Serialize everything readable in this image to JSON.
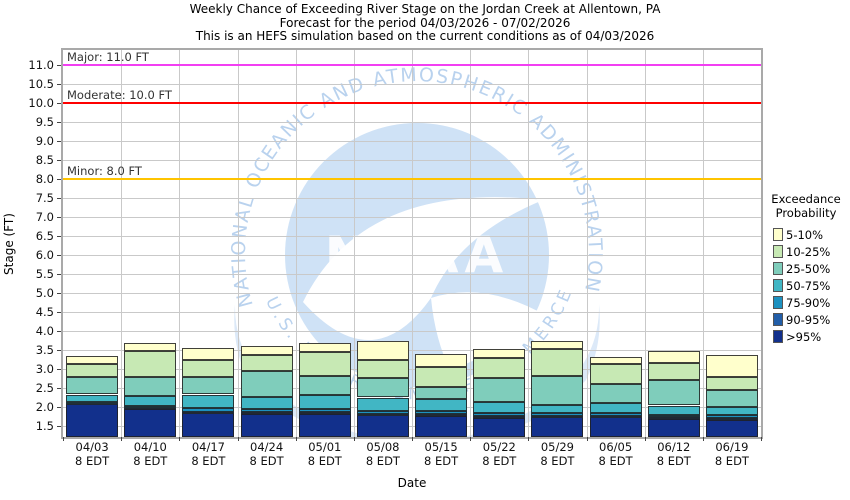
{
  "title": {
    "line1": "Weekly Chance of Exceeding River Stage on the Jordan Creek at Allentown, PA",
    "line2": "Forecast for the period 04/03/2026 - 07/02/2026",
    "line3": "This is an HEFS simulation based on the current conditions as of 04/03/2026"
  },
  "watermark": {
    "logo_text": "NOAA",
    "org_top": "NATIONAL OCEANIC AND ATMOSPHERIC ADMINISTRATION",
    "org_bottom": "U.S. DEPARTMENT OF COMMERCE"
  },
  "chart_data": {
    "type": "stacked_bar",
    "xlabel": "Date",
    "ylabel": "Stage (FT)",
    "ylim": [
      1.2,
      11.4
    ],
    "yticks_range": [
      1.5,
      11.0
    ],
    "ytick_step": 0.5,
    "grid": true,
    "x_sublabel": "8 EDT",
    "categories": [
      "04/03",
      "04/10",
      "04/17",
      "04/24",
      "05/01",
      "05/08",
      "05/15",
      "05/22",
      "05/29",
      "06/05",
      "06/12",
      "06/19"
    ],
    "series": [
      {
        "label": ">95%",
        "color": "#12308c",
        "tops": [
          2.08,
          1.95,
          1.83,
          1.82,
          1.81,
          1.77,
          1.75,
          1.7,
          1.72,
          1.72,
          1.67,
          1.65
        ]
      },
      {
        "label": "90-95%",
        "color": "#225ea8",
        "tops": [
          2.1,
          1.98,
          1.87,
          1.86,
          1.85,
          1.81,
          1.8,
          1.75,
          1.76,
          1.76,
          1.72,
          1.7
        ]
      },
      {
        "label": "75-90%",
        "color": "#1d91c0",
        "tops": [
          2.12,
          2.02,
          1.97,
          1.93,
          1.93,
          1.89,
          1.89,
          1.84,
          1.84,
          1.84,
          1.79,
          1.77
        ]
      },
      {
        "label": "50-75%",
        "color": "#41b6c4",
        "tops": [
          2.32,
          2.28,
          2.32,
          2.26,
          2.31,
          2.24,
          2.21,
          2.12,
          2.05,
          2.09,
          2.03,
          1.98
        ]
      },
      {
        "label": "25-50%",
        "color": "#7fcdbb",
        "tops": [
          2.77,
          2.79,
          2.79,
          2.95,
          2.81,
          2.75,
          2.52,
          2.75,
          2.82,
          2.6,
          2.7,
          2.45
        ]
      },
      {
        "label": "10-25%",
        "color": "#c7e9b4",
        "tops": [
          3.12,
          3.46,
          3.23,
          3.37,
          3.44,
          3.24,
          3.05,
          3.28,
          3.51,
          3.12,
          3.16,
          2.79
        ]
      },
      {
        "label": "5-10%",
        "color": "#ffffcc",
        "tops": [
          3.34,
          3.68,
          3.56,
          3.61,
          3.68,
          3.72,
          3.4,
          3.51,
          3.72,
          3.3,
          3.46,
          3.37
        ]
      }
    ],
    "thresholds": [
      {
        "label": "Minor: 8.0 FT",
        "value": 8.0,
        "color": "#ffc400"
      },
      {
        "label": "Moderate: 10.0 FT",
        "value": 10.0,
        "color": "#fe0000"
      },
      {
        "label": "Major: 11.0 FT",
        "value": 11.0,
        "color": "#f23ff2"
      }
    ],
    "legend": {
      "title_line1": "Exceedance",
      "title_line2": "Probability",
      "position": "right",
      "order_top_down": [
        "5-10%",
        "10-25%",
        "25-50%",
        "50-75%",
        "75-90%",
        "90-95%",
        ">95%"
      ]
    }
  }
}
